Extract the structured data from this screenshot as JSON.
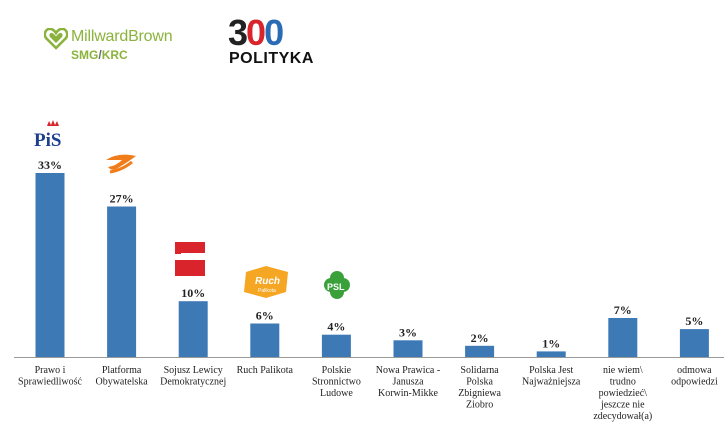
{
  "header": {
    "millward_brown": {
      "name": "MillwardBrown",
      "sub_left": "SMG",
      "sub_sep": "/",
      "sub_right": "KRC"
    },
    "polityka": {
      "digit1": "3",
      "digit2": "0",
      "digit3": "0",
      "word": "POLITYKA"
    }
  },
  "party_logos": {
    "pis": "PiS",
    "ruch": "Ruch",
    "ruch_sub": "Palikota",
    "psl": "PSL"
  },
  "colors": {
    "bar": "#3d7ab5",
    "axis": "#999999",
    "logo_green": "#8bb33c",
    "po_orange": "#f07d1a",
    "sld_red": "#d9242b",
    "psl_green": "#3aa13a"
  },
  "chart_data": {
    "type": "bar",
    "categories": [
      [
        "Prawo i",
        "Sprawiedliwość"
      ],
      [
        "Platforma",
        "Obywatelska"
      ],
      [
        "Sojusz Lewicy",
        "Demokratycznej"
      ],
      [
        "Ruch Palikota"
      ],
      [
        "Polskie",
        "Stronnictwo",
        "Ludowe"
      ],
      [
        "Nowa Prawica -",
        "Janusza",
        "Korwin-Mikke"
      ],
      [
        "Solidarna",
        "Polska",
        "Zbigniewa",
        "Ziobro"
      ],
      [
        "Polska Jest",
        "Najważniejsza"
      ],
      [
        "nie wiem\\",
        "trudno",
        "powiedzieć\\",
        "jeszcze nie",
        "zdecydował(a)"
      ],
      [
        "odmowa",
        "odpowiedzi"
      ]
    ],
    "values": [
      33,
      27,
      10,
      6,
      4,
      3,
      2,
      1,
      7,
      5
    ],
    "data_labels": [
      "33%",
      "27%",
      "10%",
      "6%",
      "4%",
      "3%",
      "2%",
      "1%",
      "7%",
      "5%"
    ],
    "ylim": [
      0,
      35
    ]
  }
}
